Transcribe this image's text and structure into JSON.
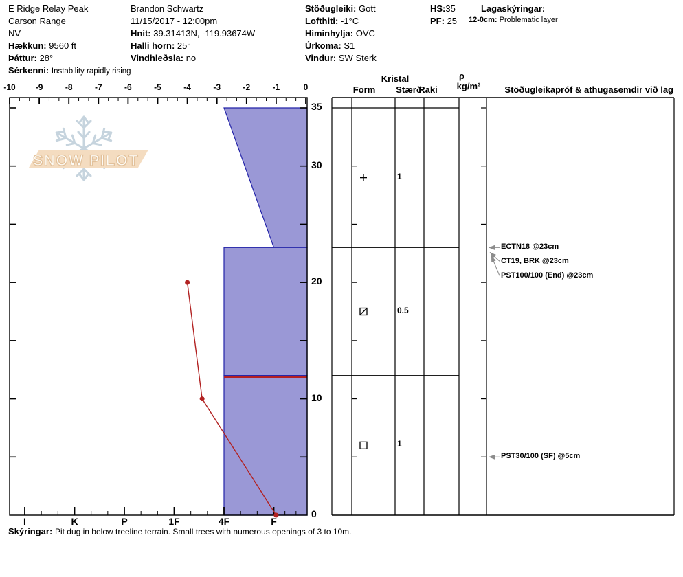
{
  "report": {
    "site": {
      "name": "E Ridge Relay Peak",
      "range": "Carson Range",
      "state": "NV",
      "elevation_label": "Hækkun:",
      "elevation": "9560 ft",
      "aspect_label": "Þáttur:",
      "aspect": "28°",
      "special_label": "Sérkenni:",
      "special": "Instability rapidly rising"
    },
    "observer": {
      "name": "Brandon Schwartz",
      "datetime": "11/15/2017 - 12:00pm",
      "coords_label": "Hnit:",
      "coords": "39.31413N, -119.93674W",
      "slope_label": "Halli horn:",
      "slope": "25°",
      "windload_label": "Vindhleðsla:",
      "windload": "no"
    },
    "conditions": {
      "stability_label": "Stöðugleiki:",
      "stability": "Gott",
      "airtemp_label": "Lofthiti:",
      "airtemp": "-1°C",
      "sky_label": "Himinhylja:",
      "sky": "OVC",
      "precip_label": "Úrkoma:",
      "precip": "S1",
      "wind_label": "Vindur:",
      "wind": "SW Sterk"
    },
    "totals": {
      "hs_label": "HS:",
      "hs": "35",
      "pf_label": "PF:",
      "pf": "25"
    },
    "layer_notes": {
      "title": "Lagaskýringar:",
      "entry_range": "12-0cm:",
      "entry_text": "Problematic layer"
    },
    "footer_label": "Skýringar:",
    "footer_text": "Pit dug in below treeline terrain. Small trees with numerous openings of 3 to 10m."
  },
  "logo": {
    "text": "SNOW PILOT"
  },
  "panel_headers": {
    "kristal": "Kristal",
    "form": "Form",
    "size": "Stærð",
    "moisture": "Raki",
    "density_symbol": "ρ",
    "density_units": "kg/m³",
    "tests": "Stöðugleikapróf & athugasemdir við lag"
  },
  "chart_data": {
    "type": "snow-profile",
    "temp_axis": {
      "min": -10,
      "max": 0,
      "tick_labels": [
        "-10",
        "-9",
        "-8",
        "-7",
        "-6",
        "-5",
        "-4",
        "-3",
        "-2",
        "-1",
        "0"
      ]
    },
    "depth_axis": {
      "surface_cm": 35,
      "bottom_cm": 0,
      "tick_interval_cm": 5,
      "labels": [
        35,
        30,
        20,
        10,
        0
      ]
    },
    "hardness_axis": {
      "labels": [
        "I",
        "K",
        "P",
        "1F",
        "4F",
        "F"
      ]
    },
    "hs_cm": 35,
    "layers": [
      {
        "top_cm": 35,
        "bottom_cm": 23,
        "hardness_top": "4F",
        "hardness_bottom": "F",
        "grain_form_symbol": "plus",
        "grain_form_name": "precipitation-particles",
        "grain_size_mm": "1"
      },
      {
        "top_cm": 23,
        "bottom_cm": 12,
        "hardness_top": "4F",
        "hardness_bottom": "4F",
        "grain_form_symbol": "square-slash",
        "grain_form_name": "decomposing-fragments",
        "grain_size_mm": "0.5"
      },
      {
        "top_cm": 12,
        "bottom_cm": 0,
        "hardness_top": "4F",
        "hardness_bottom": "4F",
        "grain_form_symbol": "square",
        "grain_form_name": "faceted-crystals",
        "grain_size_mm": "1"
      }
    ],
    "problem_layer_top_cm": 12,
    "temperature_profile": [
      {
        "depth_cm": 20,
        "temp_c": -4
      },
      {
        "depth_cm": 10,
        "temp_c": -3.5
      },
      {
        "depth_cm": 0,
        "temp_c": -1
      }
    ],
    "stability_tests": [
      {
        "label": "ECTN18 @23cm",
        "depth_cm": 23
      },
      {
        "label": "CT19, BRK @23cm",
        "depth_cm": 23
      },
      {
        "label": "PST100/100 (End) @23cm",
        "depth_cm": 23
      },
      {
        "label": "PST30/100 (SF) @5cm",
        "depth_cm": 5
      }
    ],
    "colors": {
      "layer_fill": "#9a98d6",
      "layer_border": "#2323a8",
      "problem_line": "#b41f23",
      "temp_line": "#b22222",
      "arrow_gray": "#8c8c8c",
      "logo_flake": "#c6d4de",
      "logo_banner": "#f4dcc0"
    }
  }
}
